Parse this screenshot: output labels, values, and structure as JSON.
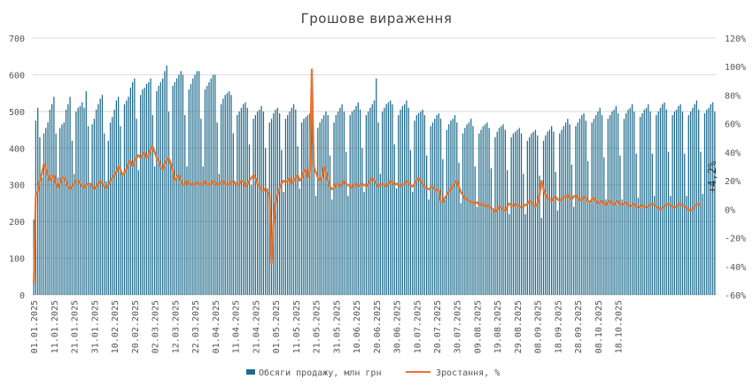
{
  "colors": {
    "bars": "#1f6b8c",
    "line": "#e9722a",
    "grid": "#d9d9d9",
    "text": "#555555"
  },
  "chart_data": {
    "type": "bar+line",
    "title": "Грошове вираження",
    "left_axis": {
      "ylim": [
        0,
        700
      ],
      "ticks": [
        0,
        100,
        200,
        300,
        400,
        500,
        600,
        700
      ]
    },
    "right_axis": {
      "ylim": [
        -60,
        120
      ],
      "ticks": [
        "-60%",
        "-40%",
        "-20%",
        "0%",
        "20%",
        "40%",
        "60%",
        "80%",
        "100%",
        "120%"
      ]
    },
    "x_tick_labels": [
      "01.01.2025",
      "11.01.2025",
      "21.01.2025",
      "31.01.2025",
      "10.02.2025",
      "20.02.2025",
      "02.03.2025",
      "12.03.2025",
      "22.03.2025",
      "01.04.2025",
      "11.04.2025",
      "21.04.2025",
      "01.05.2025",
      "11.05.2025",
      "21.05.2025",
      "31.05.2025",
      "10.06.2025",
      "20.06.2025",
      "30.06.2025",
      "10.07.2025",
      "20.07.2025",
      "30.07.2025",
      "09.08.2025",
      "19.08.2025",
      "29.08.2025",
      "08.09.2025",
      "18.09.2025",
      "28.09.2025",
      "08.10.2025",
      "18.10.2025"
    ],
    "series": [
      {
        "name": "Обсяги продажу, млн грн",
        "kind": "bar",
        "x_start": "2025-01-01",
        "values": [
          205,
          475,
          510,
          430,
          320,
          440,
          455,
          470,
          505,
          520,
          540,
          440,
          320,
          455,
          465,
          470,
          505,
          520,
          540,
          420,
          330,
          500,
          510,
          515,
          525,
          510,
          555,
          460,
          300,
          465,
          480,
          505,
          520,
          535,
          545,
          440,
          310,
          420,
          470,
          485,
          505,
          530,
          540,
          460,
          330,
          520,
          530,
          540,
          565,
          580,
          590,
          480,
          340,
          545,
          560,
          565,
          575,
          580,
          590,
          490,
          350,
          555,
          570,
          580,
          590,
          610,
          625,
          500,
          360,
          570,
          580,
          590,
          600,
          610,
          600,
          490,
          350,
          560,
          575,
          590,
          600,
          610,
          610,
          480,
          350,
          560,
          570,
          580,
          590,
          600,
          600,
          470,
          330,
          520,
          535,
          545,
          550,
          555,
          545,
          440,
          310,
          490,
          500,
          510,
          520,
          525,
          510,
          410,
          300,
          480,
          490,
          500,
          505,
          515,
          500,
          400,
          290,
          470,
          480,
          495,
          505,
          510,
          495,
          395,
          280,
          480,
          490,
          500,
          510,
          520,
          505,
          405,
          290,
          470,
          480,
          485,
          490,
          495,
          480,
          390,
          270,
          455,
          470,
          480,
          490,
          500,
          490,
          380,
          260,
          470,
          490,
          500,
          510,
          520,
          500,
          390,
          270,
          490,
          500,
          505,
          515,
          525,
          505,
          400,
          280,
          490,
          500,
          510,
          520,
          530,
          590,
          470,
          330,
          500,
          510,
          520,
          525,
          530,
          520,
          410,
          290,
          490,
          505,
          515,
          520,
          530,
          510,
          395,
          280,
          475,
          490,
          495,
          500,
          505,
          490,
          380,
          260,
          460,
          470,
          480,
          490,
          495,
          480,
          370,
          260,
          450,
          465,
          475,
          480,
          490,
          470,
          360,
          250,
          440,
          455,
          465,
          470,
          480,
          460,
          350,
          240,
          440,
          450,
          460,
          465,
          470,
          455,
          345,
          230,
          430,
          445,
          455,
          460,
          465,
          450,
          340,
          220,
          430,
          440,
          445,
          450,
          455,
          440,
          330,
          220,
          420,
          430,
          440,
          445,
          450,
          435,
          325,
          210,
          420,
          435,
          445,
          450,
          460,
          445,
          335,
          230,
          440,
          450,
          460,
          470,
          480,
          465,
          355,
          240,
          460,
          470,
          480,
          490,
          495,
          475,
          365,
          250,
          470,
          480,
          490,
          500,
          510,
          490,
          375,
          260,
          480,
          490,
          500,
          505,
          515,
          495,
          380,
          260,
          480,
          495,
          505,
          510,
          520,
          500,
          385,
          265,
          485,
          495,
          505,
          510,
          520,
          500,
          385,
          270,
          490,
          500,
          510,
          520,
          525,
          505,
          390,
          270,
          490,
          500,
          505,
          515,
          520,
          500,
          385,
          270,
          490,
          500,
          510,
          520,
          530,
          505,
          390,
          275,
          495,
          505,
          510,
          520,
          525,
          500
        ],
        "color": "#1f6b8c"
      },
      {
        "name": "Зростання, %",
        "kind": "line",
        "x_start": "2025-01-01",
        "values": [
          -52,
          10,
          12,
          20,
          25,
          32,
          28,
          24,
          20,
          22,
          24,
          18,
          15,
          18,
          22,
          22,
          20,
          16,
          14,
          16,
          18,
          20,
          20,
          18,
          16,
          15,
          17,
          18,
          18,
          16,
          14,
          16,
          18,
          20,
          18,
          16,
          15,
          17,
          20,
          22,
          24,
          26,
          30,
          28,
          24,
          26,
          28,
          32,
          34,
          30,
          34,
          36,
          38,
          36,
          38,
          40,
          36,
          38,
          42,
          44,
          40,
          36,
          34,
          30,
          28,
          32,
          34,
          36,
          32,
          28,
          20,
          22,
          24,
          20,
          18,
          17,
          20,
          18,
          18,
          17,
          18,
          19,
          18,
          17,
          18,
          20,
          18,
          17,
          18,
          20,
          19,
          17,
          18,
          19,
          20,
          18,
          17,
          18,
          19,
          20,
          18,
          17,
          18,
          20,
          19,
          16,
          18,
          20,
          22,
          24,
          22,
          18,
          16,
          14,
          13,
          15,
          12,
          10,
          -38,
          -10,
          5,
          10,
          15,
          18,
          20,
          19,
          20,
          22,
          18,
          20,
          22,
          24,
          20,
          22,
          26,
          28,
          22,
          26,
          98,
          30,
          26,
          22,
          20,
          22,
          30,
          26,
          20,
          16,
          14,
          15,
          18,
          17,
          16,
          18,
          20,
          18,
          17,
          16,
          15,
          17,
          18,
          16,
          17,
          18,
          17,
          16,
          18,
          20,
          22,
          20,
          18,
          16,
          17,
          18,
          17,
          16,
          18,
          20,
          19,
          17,
          18,
          17,
          16,
          17,
          18,
          20,
          19,
          17,
          16,
          18,
          20,
          22,
          20,
          18,
          16,
          15,
          14,
          15,
          16,
          14,
          13,
          14,
          6,
          5,
          8,
          10,
          12,
          14,
          16,
          18,
          20,
          16,
          12,
          10,
          8,
          7,
          6,
          5,
          5,
          4,
          5,
          3,
          4,
          3,
          2,
          3,
          2,
          1,
          0,
          -2,
          0,
          2,
          1,
          0,
          -1,
          2,
          4,
          3,
          2,
          4,
          3,
          2,
          1,
          2,
          3,
          4,
          6,
          5,
          3,
          2,
          4,
          10,
          20,
          14,
          10,
          8,
          7,
          6,
          8,
          9,
          7,
          6,
          7,
          8,
          9,
          10,
          8,
          7,
          9,
          10,
          8,
          6,
          7,
          9,
          8,
          6,
          5,
          7,
          8,
          6,
          4,
          5,
          6,
          4,
          3,
          5,
          6,
          4,
          3,
          5,
          6,
          4,
          3,
          4,
          5,
          3,
          2,
          3,
          4,
          2,
          1,
          2,
          3,
          2,
          1,
          2,
          3,
          4,
          3,
          2,
          1,
          0,
          1,
          2,
          3,
          4,
          3,
          2,
          1,
          2,
          3,
          4,
          3,
          2,
          1,
          0,
          -1,
          0,
          2,
          3,
          4,
          3
        ],
        "color": "#e9722a"
      }
    ],
    "annotations": [
      "+4,2%"
    ],
    "legend": [
      {
        "label": "Обсяги продажу, млн грн",
        "color": "#1f6b8c"
      },
      {
        "label": "Зростання, %",
        "color": "#e9722a"
      }
    ],
    "legend_position": "bottom",
    "grid": true
  }
}
